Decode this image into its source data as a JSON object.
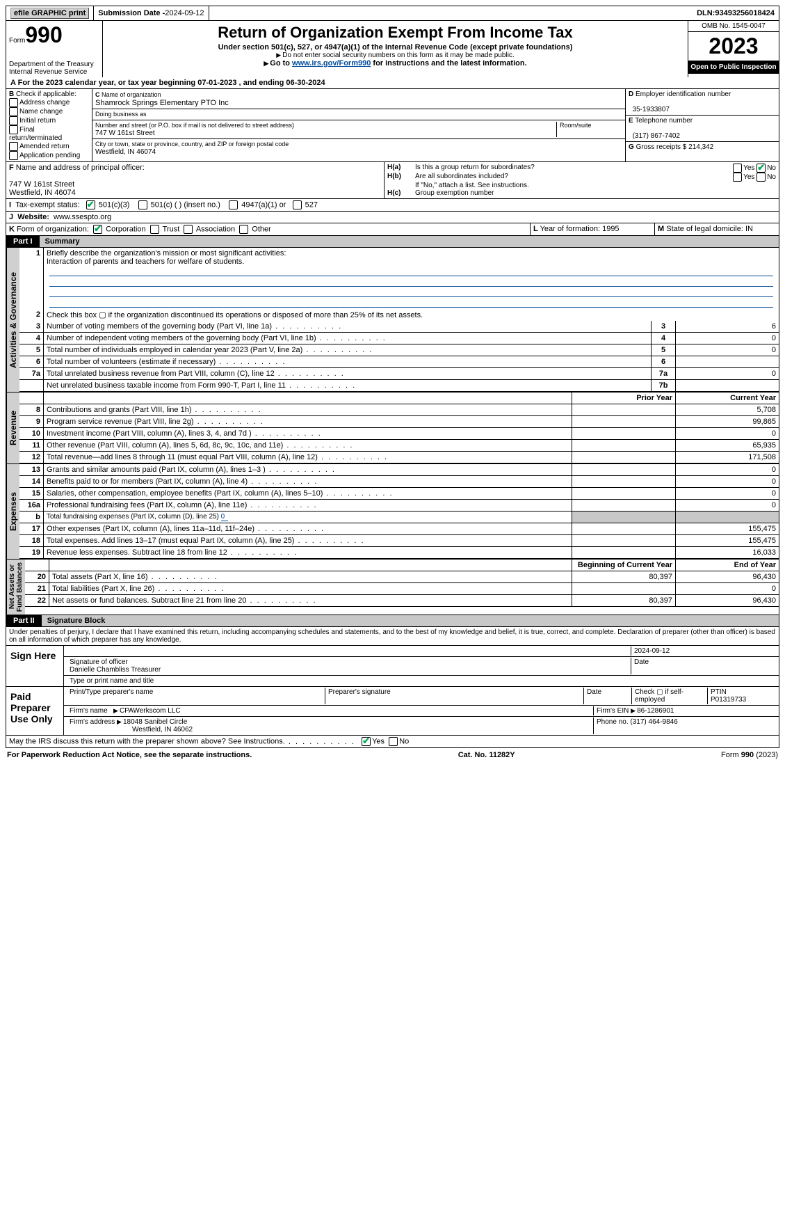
{
  "topbar": {
    "efile": "efile GRAPHIC print",
    "submission_label": "Submission Date - ",
    "submission_date": "2024-09-12",
    "dln_label": "DLN: ",
    "dln": "93493256018424"
  },
  "header": {
    "form_word": "Form",
    "form_num": "990",
    "dept": "Department of the Treasury Internal Revenue Service",
    "title": "Return of Organization Exempt From Income Tax",
    "sub1": "Under section 501(c), 527, or 4947(a)(1) of the Internal Revenue Code (except private foundations)",
    "sub2": "Do not enter social security numbers on this form as it may be made public.",
    "sub3_pre": "Go to ",
    "sub3_link": "www.irs.gov/Form990",
    "sub3_post": " for instructions and the latest information.",
    "omb": "OMB No. 1545-0047",
    "year": "2023",
    "open": "Open to Public Inspection"
  },
  "A": {
    "text_pre": "For the 2023 calendar year, or tax year beginning ",
    "begin": "07-01-2023",
    "mid": " , and ending ",
    "end": "06-30-2024"
  },
  "B": {
    "label": "Check if applicable:",
    "items": [
      "Address change",
      "Name change",
      "Initial return",
      "Final return/terminated",
      "Amended return",
      "Application pending"
    ]
  },
  "C": {
    "name_label": "Name of organization",
    "name": "Shamrock Springs Elementary PTO Inc",
    "dba_label": "Doing business as",
    "addr_label": "Number and street (or P.O. box if mail is not delivered to street address)",
    "room_label": "Room/suite",
    "addr": "747 W 161st Street",
    "city_label": "City or town, state or province, country, and ZIP or foreign postal code",
    "city": "Westfield, IN  46074"
  },
  "D": {
    "label": "Employer identification number",
    "val": "35-1933807"
  },
  "E": {
    "label": "Telephone number",
    "val": "(317) 867-7402"
  },
  "G": {
    "label": "Gross receipts $ ",
    "val": "214,342"
  },
  "F": {
    "label": "Name and address of principal officer:",
    "line1": "747 W 161st Street",
    "line2": "Westfield, IN  46074"
  },
  "H": {
    "a": "Is this a group return for subordinates?",
    "b": "Are all subordinates included?",
    "note": "If \"No,\" attach a list. See instructions.",
    "c": "Group exemption number",
    "yes": "Yes",
    "no": "No"
  },
  "I": {
    "label": "Tax-exempt status:",
    "o1": "501(c)(3)",
    "o2": "501(c) (  ) (insert no.)",
    "o3": "4947(a)(1) or",
    "o4": "527"
  },
  "J": {
    "label": "Website:",
    "val": "www.ssespto.org"
  },
  "K": {
    "label": "Form of organization:",
    "o1": "Corporation",
    "o2": "Trust",
    "o3": "Association",
    "o4": "Other"
  },
  "L": {
    "label": "Year of formation: ",
    "val": "1995"
  },
  "M": {
    "label": "State of legal domicile: ",
    "val": "IN"
  },
  "part1": {
    "tag": "Part I",
    "title": "Summary"
  },
  "s1": {
    "l1": "Briefly describe the organization's mission or most significant activities:",
    "l1v": "Interaction of parents and teachers for welfare of students.",
    "l2": "Check this box ▢ if the organization discontinued its operations or disposed of more than 25% of its net assets.",
    "rows": [
      {
        "n": "3",
        "t": "Number of voting members of the governing body (Part VI, line 1a)",
        "b": "3",
        "v": "6"
      },
      {
        "n": "4",
        "t": "Number of independent voting members of the governing body (Part VI, line 1b)",
        "b": "4",
        "v": "0"
      },
      {
        "n": "5",
        "t": "Total number of individuals employed in calendar year 2023 (Part V, line 2a)",
        "b": "5",
        "v": "0"
      },
      {
        "n": "6",
        "t": "Total number of volunteers (estimate if necessary)",
        "b": "6",
        "v": ""
      },
      {
        "n": "7a",
        "t": "Total unrelated business revenue from Part VIII, column (C), line 12",
        "b": "7a",
        "v": "0"
      },
      {
        "n": "",
        "t": "Net unrelated business taxable income from Form 990-T, Part I, line 11",
        "b": "7b",
        "v": ""
      }
    ]
  },
  "cols": {
    "prior": "Prior Year",
    "current": "Current Year",
    "beg": "Beginning of Current Year",
    "end": "End of Year"
  },
  "rev": {
    "label": "Revenue",
    "rows": [
      {
        "n": "8",
        "t": "Contributions and grants (Part VIII, line 1h)",
        "p": "",
        "c": "5,708"
      },
      {
        "n": "9",
        "t": "Program service revenue (Part VIII, line 2g)",
        "p": "",
        "c": "99,865"
      },
      {
        "n": "10",
        "t": "Investment income (Part VIII, column (A), lines 3, 4, and 7d )",
        "p": "",
        "c": "0"
      },
      {
        "n": "11",
        "t": "Other revenue (Part VIII, column (A), lines 5, 6d, 8c, 9c, 10c, and 11e)",
        "p": "",
        "c": "65,935"
      },
      {
        "n": "12",
        "t": "Total revenue—add lines 8 through 11 (must equal Part VIII, column (A), line 12)",
        "p": "",
        "c": "171,508"
      }
    ]
  },
  "exp": {
    "label": "Expenses",
    "rows": [
      {
        "n": "13",
        "t": "Grants and similar amounts paid (Part IX, column (A), lines 1–3 )",
        "p": "",
        "c": "0"
      },
      {
        "n": "14",
        "t": "Benefits paid to or for members (Part IX, column (A), line 4)",
        "p": "",
        "c": "0"
      },
      {
        "n": "15",
        "t": "Salaries, other compensation, employee benefits (Part IX, column (A), lines 5–10)",
        "p": "",
        "c": "0"
      },
      {
        "n": "16a",
        "t": "Professional fundraising fees (Part IX, column (A), line 11e)",
        "p": "",
        "c": "0"
      },
      {
        "n": "b",
        "t": "Total fundraising expenses (Part IX, column (D), line 25) ",
        "p": "shade",
        "c": "shade",
        "u": "0"
      },
      {
        "n": "17",
        "t": "Other expenses (Part IX, column (A), lines 11a–11d, 11f–24e)",
        "p": "",
        "c": "155,475"
      },
      {
        "n": "18",
        "t": "Total expenses. Add lines 13–17 (must equal Part IX, column (A), line 25)",
        "p": "",
        "c": "155,475"
      },
      {
        "n": "19",
        "t": "Revenue less expenses. Subtract line 18 from line 12",
        "p": "",
        "c": "16,033"
      }
    ]
  },
  "net": {
    "label": "Net Assets or Fund Balances",
    "rows": [
      {
        "n": "20",
        "t": "Total assets (Part X, line 16)",
        "p": "80,397",
        "c": "96,430"
      },
      {
        "n": "21",
        "t": "Total liabilities (Part X, line 26)",
        "p": "",
        "c": "0"
      },
      {
        "n": "22",
        "t": "Net assets or fund balances. Subtract line 21 from line 20",
        "p": "80,397",
        "c": "96,430"
      }
    ]
  },
  "part2": {
    "tag": "Part II",
    "title": "Signature Block"
  },
  "perjury": "Under penalties of perjury, I declare that I have examined this return, including accompanying schedules and statements, and to the best of my knowledge and belief, it is true, correct, and complete. Declaration of preparer (other than officer) is based on all information of which preparer has any knowledge.",
  "sign": {
    "here": "Sign Here",
    "sig_label": "Signature of officer",
    "date_label": "Date",
    "date": "2024-09-12",
    "officer": "Danielle Chambliss  Treasurer",
    "type_label": "Type or print name and title"
  },
  "prep": {
    "here": "Paid Preparer Use Only",
    "name_label": "Print/Type preparer's name",
    "sig_label": "Preparer's signature",
    "date_label": "Date",
    "self": "Check ▢ if self-employed",
    "ptin_label": "PTIN",
    "ptin": "P01319733",
    "firm_label": "Firm's name",
    "firm": "CPAWerkscom LLC",
    "ein_label": "Firm's EIN",
    "ein": "86-1286901",
    "addr_label": "Firm's address",
    "addr1": "18048 Sanibel Circle",
    "addr2": "Westfield, IN  46062",
    "phone_label": "Phone no.",
    "phone": "(317) 464-9846"
  },
  "discuss": "May the IRS discuss this return with the preparer shown above? See Instructions.",
  "footer": {
    "l": "For Paperwork Reduction Act Notice, see the separate instructions.",
    "m": "Cat. No. 11282Y",
    "r": "Form 990 (2023)"
  }
}
